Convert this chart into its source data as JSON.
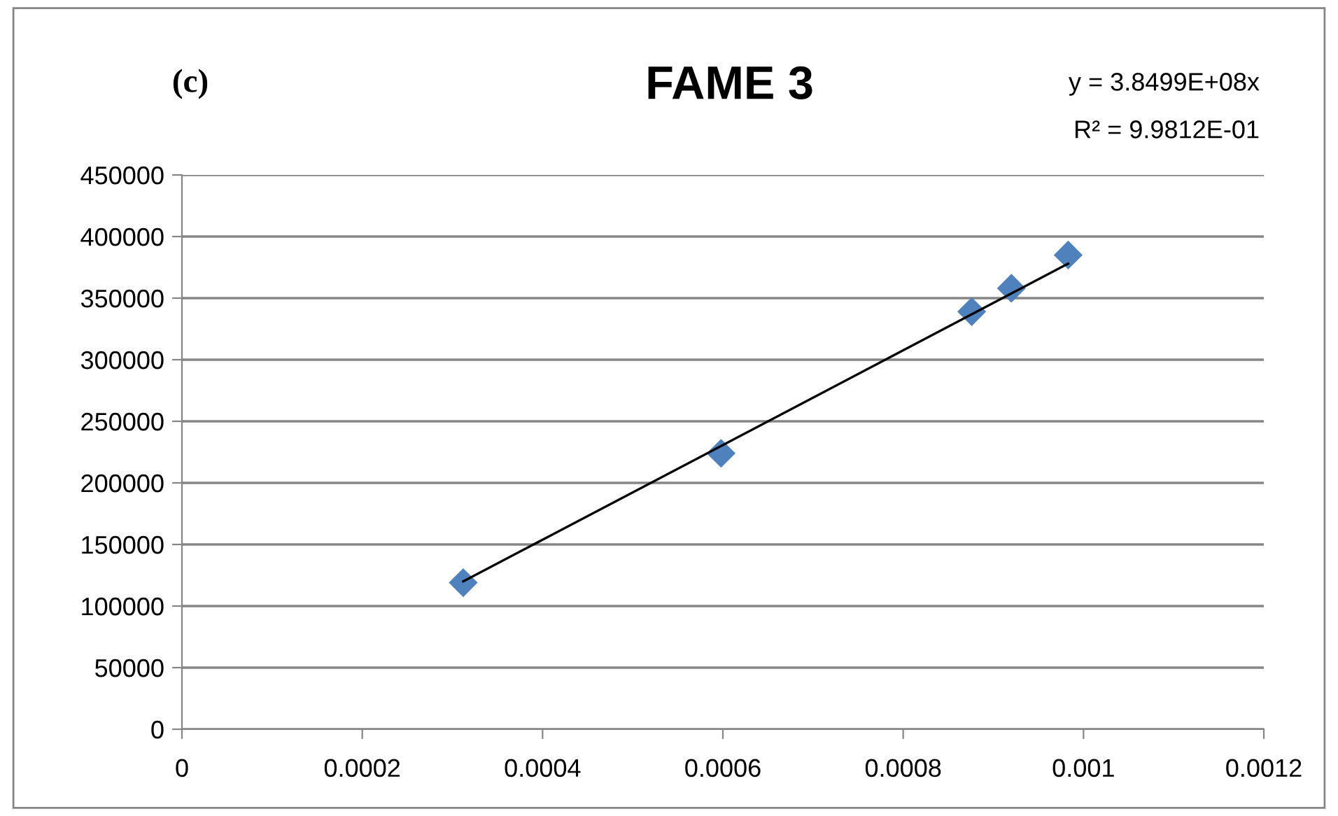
{
  "chart_data": {
    "type": "scatter",
    "title": "FAME 3",
    "annotations": [
      "(c)",
      "y = 3.8499E+08x",
      "R² = 9.9812E-01"
    ],
    "series": [
      {
        "color": "#4f81bd",
        "marker": "diamond",
        "x": [
          0.000312,
          0.000598,
          0.000876,
          0.00092,
          0.000983
        ],
        "values": [
          119000,
          224000,
          339000,
          358000,
          385000
        ]
      },
      {
        "type": "line",
        "color": "#000000",
        "marker": "none",
        "x": [
          0.000312,
          0.000983
        ],
        "values": [
          120000,
          378000
        ]
      }
    ],
    "xlim": [
      0,
      0.0012
    ],
    "xticks": [
      0,
      0.0002,
      0.0004,
      0.0006,
      0.0008,
      0.001,
      0.0012
    ],
    "ylim": [
      0,
      450000
    ],
    "yticks": [
      0,
      50000,
      100000,
      150000,
      200000,
      250000,
      300000,
      350000,
      400000,
      450000
    ],
    "grid": "y",
    "legend": false
  }
}
